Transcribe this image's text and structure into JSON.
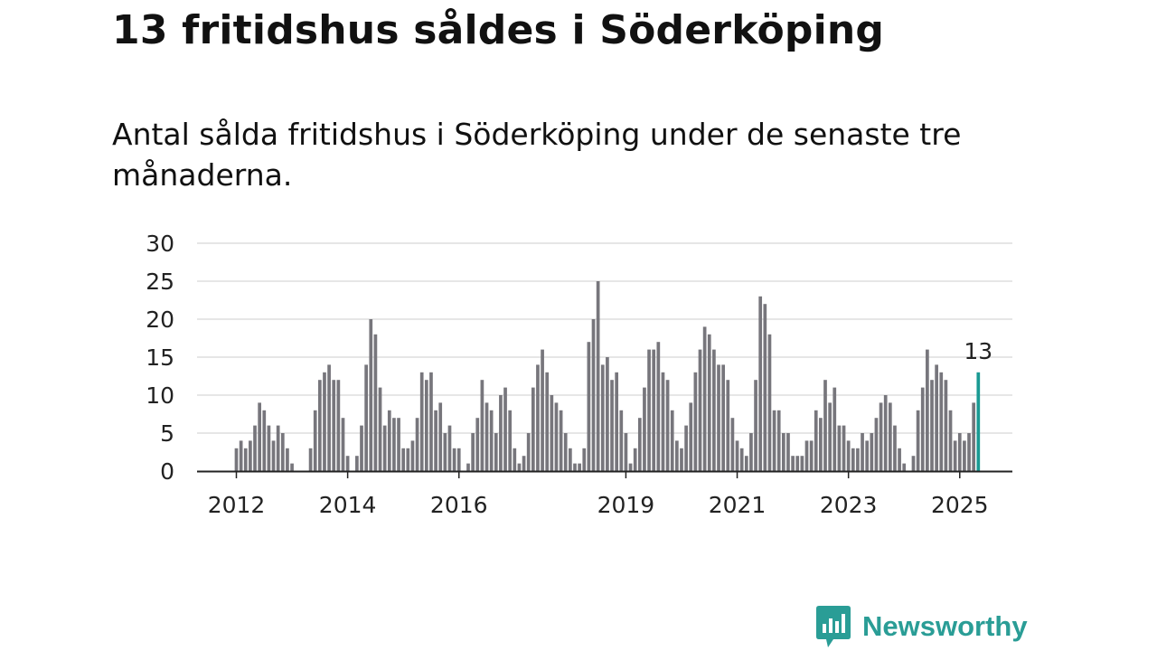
{
  "title": "13 fritidshus såldes i Söderköping",
  "subtitle": "Antal sålda fritidshus i Söderköping under de senaste tre månaderna.",
  "colors": {
    "bar": "#77767c",
    "highlight": "#1a9a93",
    "grid": "#dddddd",
    "axis": "#222222",
    "brand": "#2a9d96"
  },
  "logo": {
    "text": "Newsworthy",
    "icon": "chart-bubble-icon"
  },
  "chart_data": {
    "type": "bar",
    "x_unit": "month",
    "x_start": "2012-01",
    "ylim": [
      0,
      30
    ],
    "y_ticks": [
      0,
      5,
      10,
      15,
      20,
      25,
      30
    ],
    "x_ticks": [
      "2012",
      "2014",
      "2016",
      "2019",
      "2021",
      "2023",
      "2025"
    ],
    "grid": true,
    "highlight_label": "13",
    "values": [
      3,
      4,
      3,
      4,
      6,
      9,
      8,
      6,
      4,
      6,
      5,
      3,
      1,
      0,
      0,
      0,
      3,
      8,
      12,
      13,
      14,
      12,
      12,
      7,
      2,
      0,
      2,
      6,
      14,
      20,
      18,
      11,
      6,
      8,
      7,
      7,
      3,
      3,
      4,
      7,
      13,
      12,
      13,
      8,
      9,
      5,
      6,
      3,
      3,
      0,
      1,
      5,
      7,
      12,
      9,
      8,
      5,
      10,
      11,
      8,
      3,
      1,
      2,
      5,
      11,
      14,
      16,
      13,
      10,
      9,
      8,
      5,
      3,
      1,
      1,
      3,
      17,
      20,
      25,
      14,
      15,
      12,
      13,
      8,
      5,
      1,
      3,
      7,
      11,
      16,
      16,
      17,
      13,
      12,
      8,
      4,
      3,
      6,
      9,
      13,
      16,
      19,
      18,
      16,
      14,
      14,
      12,
      7,
      4,
      3,
      2,
      5,
      12,
      23,
      22,
      18,
      8,
      8,
      5,
      5,
      2,
      2,
      2,
      4,
      4,
      8,
      7,
      12,
      9,
      11,
      6,
      6,
      4,
      3,
      3,
      5,
      4,
      5,
      7,
      9,
      10,
      9,
      6,
      3,
      1,
      0,
      2,
      8,
      11,
      16,
      12,
      14,
      13,
      12,
      8,
      4,
      5,
      4,
      5,
      9,
      13
    ]
  }
}
